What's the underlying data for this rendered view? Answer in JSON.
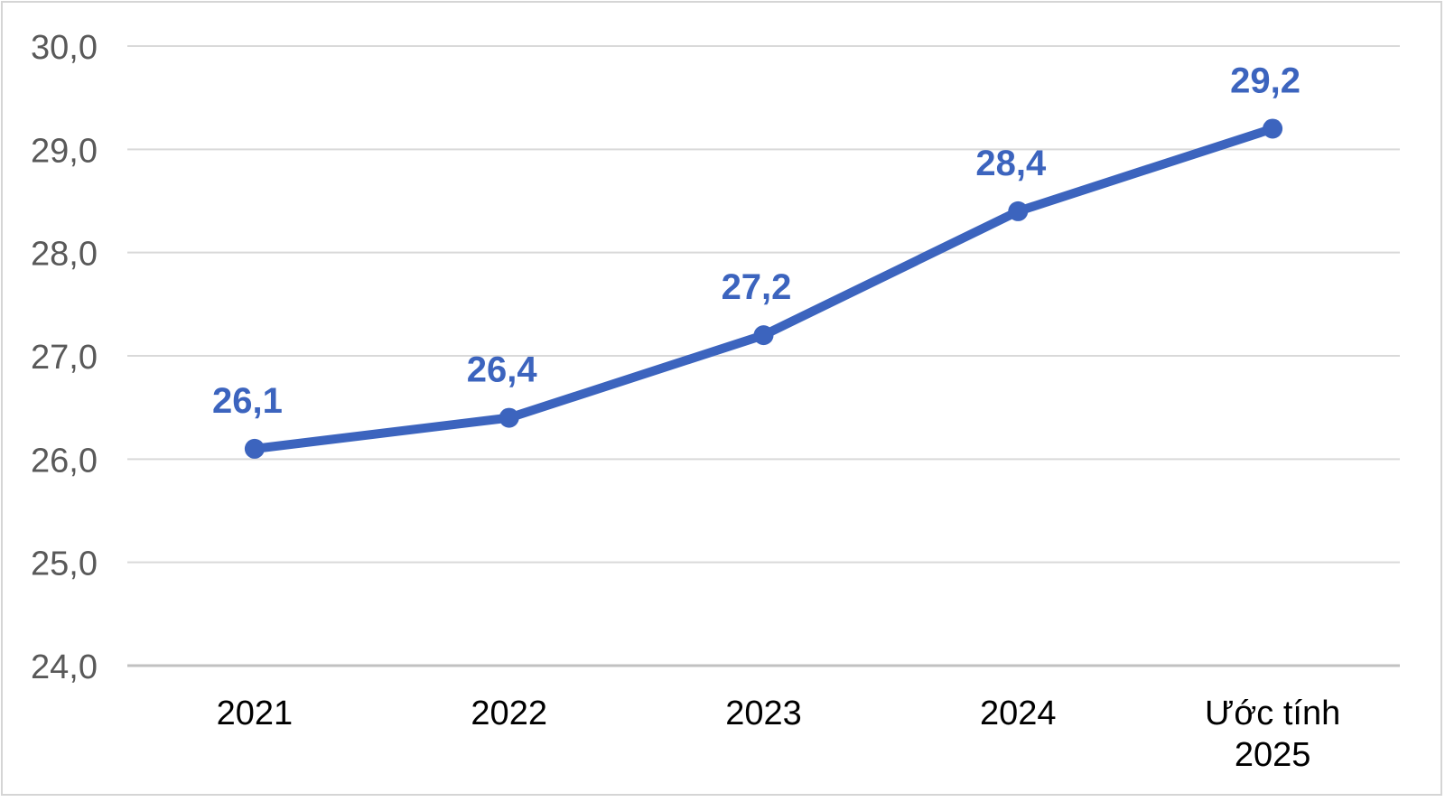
{
  "chart_data": {
    "type": "line",
    "title": "",
    "xlabel": "",
    "ylabel": "",
    "ylim": [
      24.0,
      30.0
    ],
    "grid": true,
    "legend_position": "none",
    "decimal_separator": ",",
    "categories": [
      "2021",
      "2022",
      "2023",
      "2024",
      "Ước tính 2025"
    ],
    "x_tick_lines": [
      [
        "2021"
      ],
      [
        "2022"
      ],
      [
        "2023"
      ],
      [
        "2024"
      ],
      [
        "Ước tính",
        "2025"
      ]
    ],
    "series": [
      {
        "name": "series-1",
        "values": [
          26.1,
          26.4,
          27.2,
          28.4,
          29.2
        ],
        "value_labels": [
          "26,1",
          "26,4",
          "27,2",
          "28,4",
          "29,2"
        ]
      }
    ],
    "y_ticks": [
      {
        "v": 30.0,
        "label": "30,0"
      },
      {
        "v": 29.0,
        "label": "29,0"
      },
      {
        "v": 28.0,
        "label": "28,0"
      },
      {
        "v": 27.0,
        "label": "27,0"
      },
      {
        "v": 26.0,
        "label": "26,0"
      },
      {
        "v": 25.0,
        "label": "25,0"
      },
      {
        "v": 24.0,
        "label": "24,0"
      }
    ],
    "colors": {
      "line": "#3c64be",
      "marker": "#3c64be",
      "data_label": "#3c64be",
      "gridline": "#d9d9d9",
      "axis_line": "#c1c1c1",
      "y_tick_text": "#595959",
      "x_tick_text": "#000000",
      "background": "#ffffff",
      "frame_border": "#d5d5d5"
    }
  }
}
